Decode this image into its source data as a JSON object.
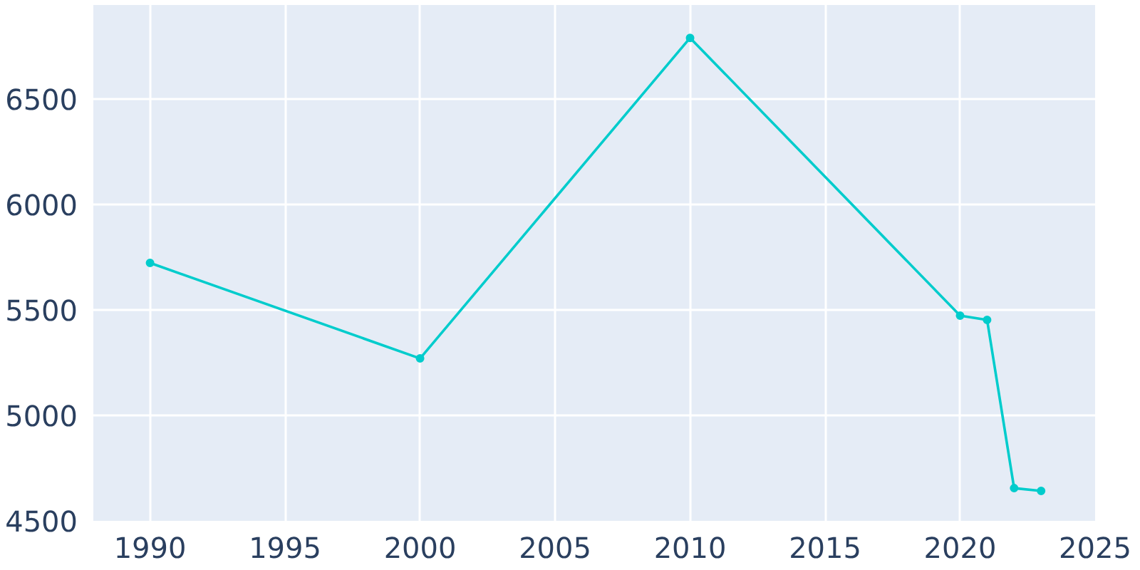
{
  "chart_data": {
    "type": "line",
    "x": [
      1990,
      2000,
      2010,
      2020,
      2021,
      2022,
      2023
    ],
    "series": [
      {
        "color": "#00cccc",
        "values": [
          5723,
          5270,
          6790,
          5473,
          5453,
          4655,
          4642
        ]
      }
    ],
    "xlim": [
      1987.9,
      2025
    ],
    "xticks": [
      1990,
      1995,
      2000,
      2005,
      2010,
      2015,
      2020,
      2025
    ],
    "ylim": [
      4500,
      6946
    ],
    "yticks": [
      4500,
      5000,
      5500,
      6000,
      6500
    ],
    "grid": true,
    "marker": "circle",
    "line_style": "solid"
  }
}
